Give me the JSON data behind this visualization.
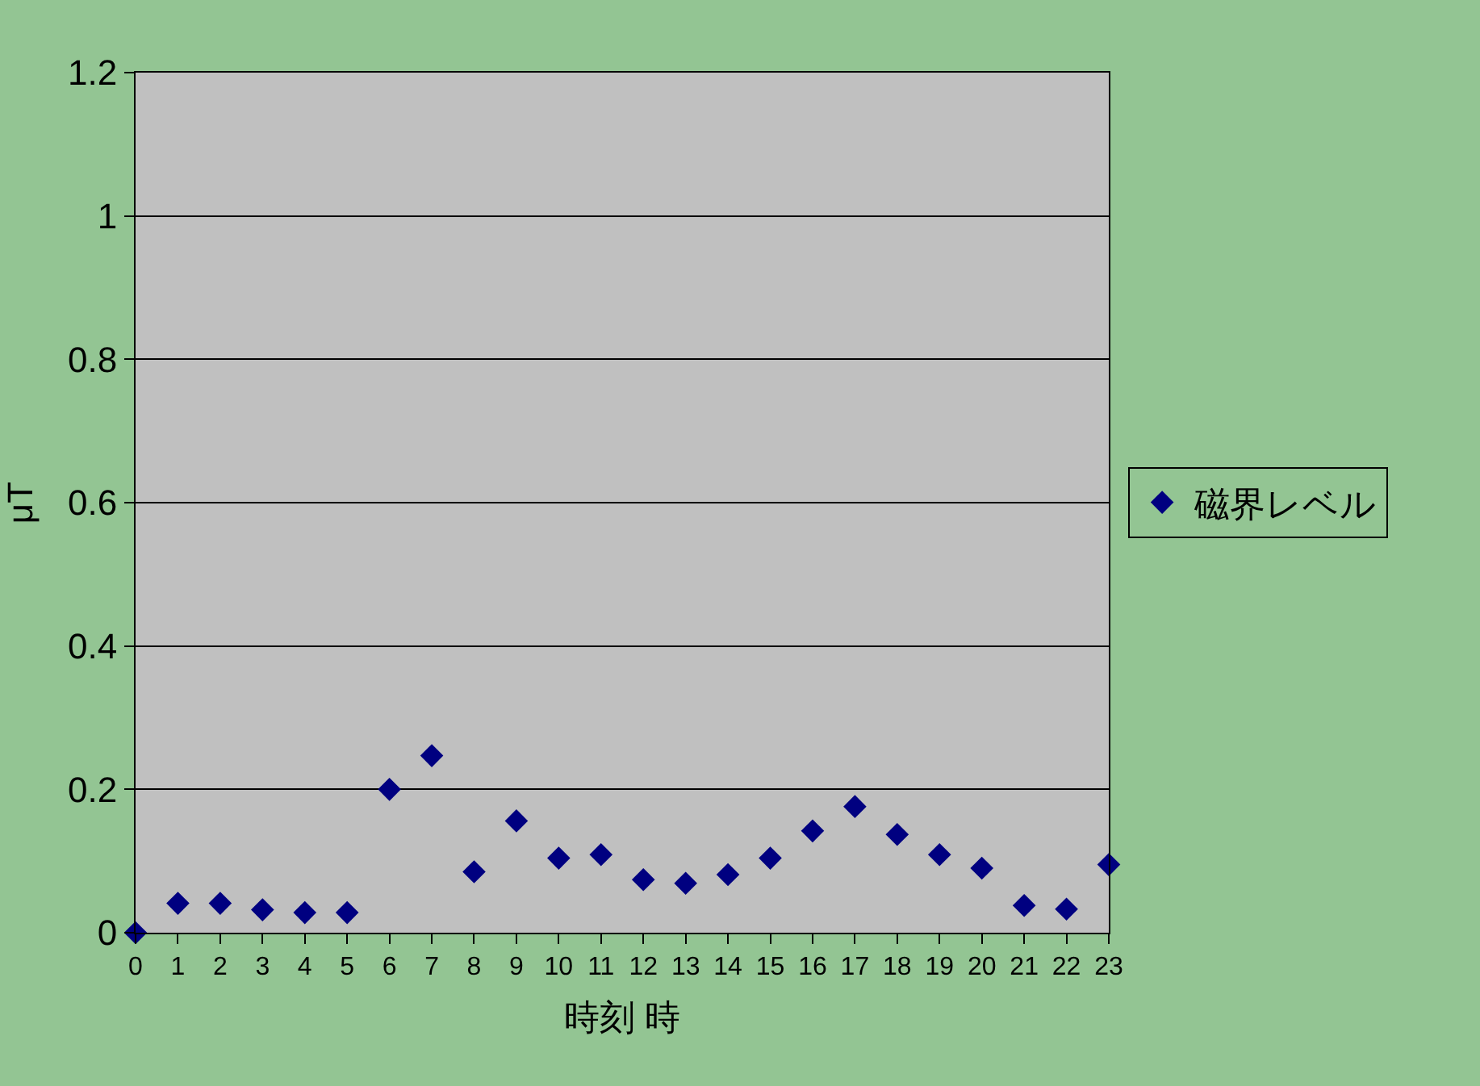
{
  "chart_data": {
    "type": "scatter",
    "xlabel": "時刻 時",
    "ylabel": "μT",
    "x": [
      0,
      1,
      2,
      3,
      4,
      5,
      6,
      7,
      8,
      9,
      10,
      11,
      12,
      13,
      14,
      15,
      16,
      17,
      18,
      19,
      20,
      21,
      22,
      23
    ],
    "series": [
      {
        "name": "磁界レベル",
        "color": "#000080",
        "values": [
          0,
          0.041,
          0.041,
          0.032,
          0.028,
          0.028,
          0.2,
          0.247,
          0.085,
          0.156,
          0.104,
          0.109,
          0.074,
          0.069,
          0.081,
          0.104,
          0.142,
          0.176,
          0.137,
          0.109,
          0.09,
          0.038,
          0.033,
          0.095
        ]
      }
    ],
    "xlim": [
      0,
      23
    ],
    "xticks": [
      0,
      1,
      2,
      3,
      4,
      5,
      6,
      7,
      8,
      9,
      10,
      11,
      12,
      13,
      14,
      15,
      16,
      17,
      18,
      19,
      20,
      21,
      22,
      23
    ],
    "ylim": [
      0,
      1.2
    ],
    "yticks": [
      0,
      0.2,
      0.4,
      0.6,
      0.8,
      1,
      1.2
    ],
    "grid": "y",
    "legend": "right",
    "marker": "diamond"
  }
}
